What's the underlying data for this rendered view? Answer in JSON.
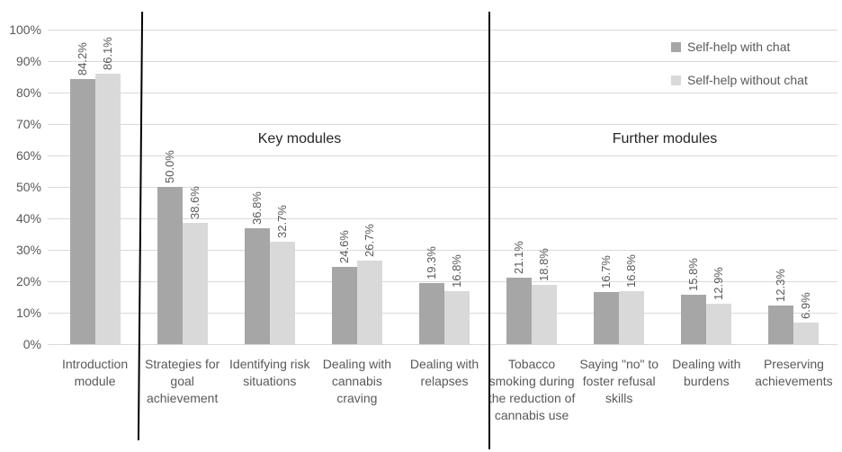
{
  "chart_data": {
    "type": "bar",
    "title": "",
    "xlabel": "",
    "ylabel": "",
    "categories": [
      "Introduction module",
      "Strategies for goal achievement",
      "Identifying risk situations",
      "Dealing with cannabis craving",
      "Dealing with relapses",
      "Tobacco smoking during the reduction of cannabis use",
      "Saying \"no\" to foster refusal skills",
      "Dealing with burdens",
      "Preserving achievements"
    ],
    "series": [
      {
        "name": "Self-help with chat",
        "color": "#a6a6a6",
        "values": [
          84.2,
          50.0,
          36.8,
          24.6,
          19.3,
          21.1,
          16.7,
          15.8,
          12.3
        ],
        "labels": [
          "84.2%",
          "50.0%",
          "36.8%",
          "24.6%",
          "19.3%",
          "21.1%",
          "16.7%",
          "15.8%",
          "12.3%"
        ]
      },
      {
        "name": "Self-help without chat",
        "color": "#d9d9d9",
        "values": [
          86.1,
          38.6,
          32.7,
          26.7,
          16.8,
          18.8,
          16.8,
          12.9,
          6.9
        ],
        "labels": [
          "86.1%",
          "38.6%",
          "32.7%",
          "26.7%",
          "16.8%",
          "18.8%",
          "16.8%",
          "12.9%",
          "6.9%"
        ]
      }
    ],
    "sections": [
      {
        "label": "Key modules",
        "from_category": 1,
        "to_category": 4
      },
      {
        "label": "Further modules",
        "from_category": 5,
        "to_category": 8
      }
    ],
    "y_axis": {
      "min": 0,
      "max": 100,
      "step": 10,
      "ticks": [
        "0%",
        "10%",
        "20%",
        "30%",
        "40%",
        "50%",
        "60%",
        "70%",
        "80%",
        "90%",
        "100%"
      ]
    },
    "ylim": [
      0,
      100
    ],
    "grid": true,
    "legend_position": "top-right",
    "colors": {
      "grid": "#d9d9d9",
      "axis_text": "#595959",
      "value_label_text": "#595959",
      "section_text": "#262626",
      "divider": "#000000",
      "background": "#ffffff"
    }
  }
}
